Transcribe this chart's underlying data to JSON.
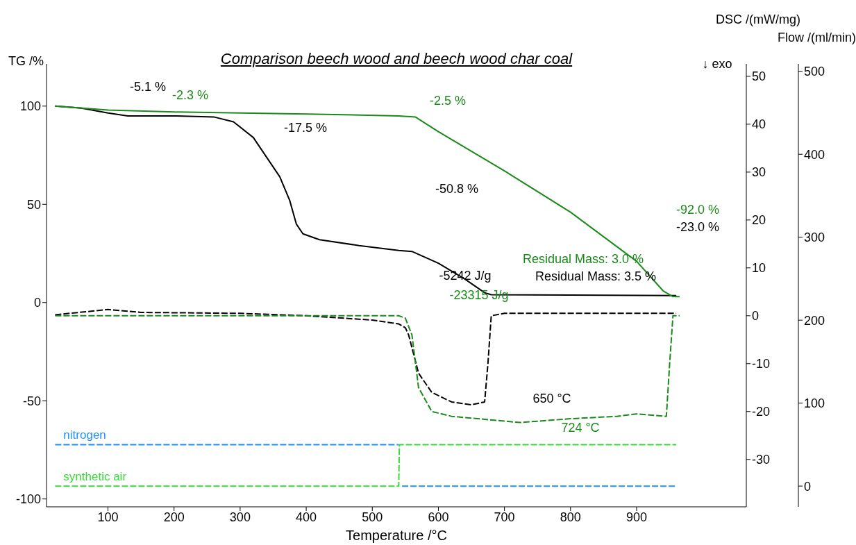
{
  "chart_data": {
    "type": "line",
    "title": "Comparison beech wood and beech wood char coal",
    "xlabel": "Temperature /°C",
    "ylabel": "TG /%",
    "y2label": "DSC /(mW/mg)",
    "y3label": "Flow /(ml/min)",
    "xlim": [
      7,
      1066
    ],
    "xticks": [
      100,
      200,
      300,
      400,
      500,
      600,
      700,
      800,
      900
    ],
    "ylim": [
      -104,
      121.5
    ],
    "yticks": [
      -100,
      -50,
      0,
      50,
      100
    ],
    "y2lim": [
      -39.9,
      52.6
    ],
    "y2ticks": [
      -30,
      -20,
      -10,
      0,
      10,
      20,
      30,
      40,
      50
    ],
    "y3lim": [
      -25,
      509
    ],
    "y3ticks": [
      0,
      100,
      200,
      300,
      400,
      500
    ],
    "marker": "none",
    "series": [
      {
        "color": "#000000",
        "line_style": "solid",
        "x": [
          20,
          60,
          100,
          130,
          200,
          260,
          290,
          320,
          340,
          360,
          375,
          385,
          395,
          420,
          480,
          540,
          560,
          600,
          640,
          670,
          680,
          800,
          960
        ],
        "values": [
          100,
          99,
          96.5,
          95,
          95,
          94.5,
          92,
          84,
          74,
          64,
          52,
          40,
          35,
          32,
          29,
          26.5,
          26,
          20,
          12,
          5,
          4,
          3.8,
          3.5
        ]
      },
      {
        "color": "#1a8a1a",
        "line_style": "solid",
        "x": [
          20,
          100,
          200,
          400,
          540,
          565,
          600,
          700,
          800,
          900,
          940,
          955,
          965
        ],
        "values": [
          100,
          98,
          97,
          96,
          95,
          94.5,
          87,
          67,
          46,
          21,
          6,
          3,
          3
        ]
      },
      {
        "color": "#000000",
        "line_style": "dashed",
        "axis": "y2",
        "x": [
          20,
          100,
          150,
          300,
          400,
          500,
          540,
          550,
          555,
          570,
          590,
          620,
          650,
          670,
          675,
          680,
          700,
          960
        ],
        "values": [
          0.2,
          1.3,
          0.7,
          0.5,
          0,
          -0.9,
          -1.7,
          -2.5,
          -4,
          -12,
          -16,
          -18,
          -18.6,
          -18,
          -10,
          0,
          0.5,
          0.5
        ]
      },
      {
        "color": "#1a8a1a",
        "line_style": "dashed",
        "axis": "y2",
        "x": [
          20,
          540,
          550,
          560,
          570,
          590,
          620,
          700,
          724,
          800,
          870,
          900,
          945,
          950,
          955,
          965
        ],
        "values": [
          0,
          0,
          -0.5,
          -4,
          -15,
          -20,
          -21,
          -22,
          -22.3,
          -21.5,
          -21,
          -20.5,
          -21,
          -10,
          0,
          0
        ]
      },
      {
        "name": "nitrogen",
        "color": "#1e90ff",
        "line_style": "dashed",
        "axis": "y3",
        "x": [
          20,
          540,
          542,
          545,
          960
        ],
        "values": [
          50,
          50,
          null,
          0,
          0
        ]
      },
      {
        "name": "synthetic air",
        "color": "#33dd33",
        "line_style": "dashed",
        "axis": "y3",
        "x": [
          20,
          540,
          541,
          960
        ],
        "values": [
          0,
          0,
          50,
          50
        ]
      }
    ],
    "annotations": [
      "-5.1 %",
      "-2.3 %",
      "-2.5 %",
      "-17.5 %",
      "-50.8 %",
      "-92.0 %",
      "-23.0 %",
      "Residual Mass: 3.0 %",
      "Residual Mass: 3.5 %",
      "-5242 J/g",
      "-23315 J/g",
      "650 °C",
      "724 °C",
      "↓ exo"
    ]
  }
}
